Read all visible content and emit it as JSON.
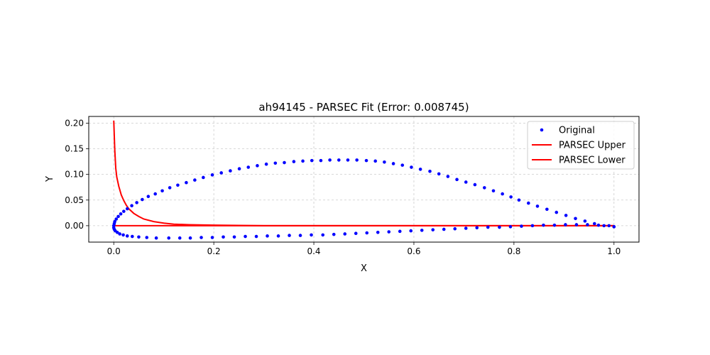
{
  "chart_data": {
    "type": "line",
    "title": "ah94145 - PARSEC Fit (Error: 0.008745)",
    "xlabel": "X",
    "ylabel": "Y",
    "xlim": [
      -0.05,
      1.05
    ],
    "ylim": [
      -0.032,
      0.213
    ],
    "xticks": [
      0.0,
      0.2,
      0.4,
      0.6,
      0.8,
      1.0
    ],
    "xtick_labels": [
      "0.0",
      "0.2",
      "0.4",
      "0.6",
      "0.8",
      "1.0"
    ],
    "yticks": [
      0.0,
      0.05,
      0.1,
      0.15,
      0.2
    ],
    "ytick_labels": [
      "0.00",
      "0.05",
      "0.10",
      "0.15",
      "0.20"
    ],
    "grid": true,
    "legend_position": "upper right",
    "colors": {
      "points": "#0000ff",
      "lines": "#ff0000",
      "grid": "#cccccc"
    },
    "series": [
      {
        "name": "Original",
        "kind": "scatter",
        "x": [
          1.0,
          0.98,
          0.961,
          0.942,
          0.923,
          0.904,
          0.885,
          0.866,
          0.847,
          0.829,
          0.81,
          0.794,
          0.777,
          0.759,
          0.741,
          0.722,
          0.704,
          0.686,
          0.668,
          0.65,
          0.632,
          0.613,
          0.595,
          0.577,
          0.559,
          0.541,
          0.523,
          0.505,
          0.486,
          0.468,
          0.45,
          0.432,
          0.414,
          0.396,
          0.378,
          0.36,
          0.341,
          0.323,
          0.305,
          0.287,
          0.269,
          0.251,
          0.233,
          0.215,
          0.197,
          0.179,
          0.162,
          0.145,
          0.128,
          0.112,
          0.097,
          0.083,
          0.069,
          0.057,
          0.046,
          0.036,
          0.027,
          0.02,
          0.014,
          0.009,
          0.005,
          0.002,
          0.001,
          0.0,
          0.0,
          0.001,
          0.003,
          0.007,
          0.012,
          0.019,
          0.027,
          0.037,
          0.05,
          0.066,
          0.085,
          0.11,
          0.132,
          0.153,
          0.175,
          0.197,
          0.219,
          0.241,
          0.263,
          0.285,
          0.307,
          0.329,
          0.351,
          0.373,
          0.395,
          0.418,
          0.44,
          0.462,
          0.484,
          0.506,
          0.528,
          0.55,
          0.572,
          0.594,
          0.616,
          0.638,
          0.66,
          0.682,
          0.704,
          0.726,
          0.748,
          0.771,
          0.793,
          0.815,
          0.837,
          0.859,
          0.881,
          0.903,
          0.925,
          0.947,
          0.969,
          0.99,
          1.0
        ],
        "y": [
          -0.002,
          0.0,
          0.004,
          0.009,
          0.014,
          0.02,
          0.026,
          0.032,
          0.038,
          0.044,
          0.05,
          0.056,
          0.062,
          0.068,
          0.074,
          0.08,
          0.085,
          0.09,
          0.096,
          0.101,
          0.106,
          0.11,
          0.114,
          0.118,
          0.121,
          0.124,
          0.126,
          0.127,
          0.128,
          0.128,
          0.128,
          0.128,
          0.127,
          0.127,
          0.126,
          0.125,
          0.123,
          0.122,
          0.12,
          0.117,
          0.114,
          0.111,
          0.107,
          0.103,
          0.099,
          0.094,
          0.089,
          0.084,
          0.079,
          0.074,
          0.068,
          0.062,
          0.057,
          0.051,
          0.045,
          0.039,
          0.033,
          0.028,
          0.023,
          0.018,
          0.013,
          0.008,
          0.004,
          0.0,
          -0.004,
          -0.007,
          -0.01,
          -0.013,
          -0.016,
          -0.018,
          -0.02,
          -0.021,
          -0.022,
          -0.023,
          -0.024,
          -0.024,
          -0.024,
          -0.024,
          -0.023,
          -0.023,
          -0.022,
          -0.022,
          -0.021,
          -0.021,
          -0.02,
          -0.02,
          -0.019,
          -0.019,
          -0.018,
          -0.018,
          -0.017,
          -0.016,
          -0.015,
          -0.014,
          -0.013,
          -0.012,
          -0.011,
          -0.01,
          -0.009,
          -0.008,
          -0.007,
          -0.006,
          -0.005,
          -0.004,
          -0.003,
          -0.003,
          -0.002,
          -0.001,
          0.0,
          0.001,
          0.001,
          0.002,
          0.002,
          0.002,
          0.001,
          0.0,
          -0.002
        ]
      },
      {
        "name": "PARSEC Upper",
        "kind": "line",
        "x": [
          0.0,
          0.002,
          0.004,
          0.006,
          0.01,
          0.015,
          0.02,
          0.025,
          0.03,
          0.04,
          0.05,
          0.06,
          0.08,
          0.1,
          0.12,
          0.15,
          0.2,
          0.3,
          0.4,
          0.6,
          0.8,
          1.0
        ],
        "y": [
          0.205,
          0.148,
          0.112,
          0.095,
          0.077,
          0.06,
          0.049,
          0.04,
          0.033,
          0.024,
          0.018,
          0.013,
          0.008,
          0.005,
          0.003,
          0.002,
          0.001,
          0.0,
          0.0,
          0.0,
          0.0,
          0.0
        ]
      },
      {
        "name": "PARSEC Lower",
        "kind": "line",
        "x": [
          0.0,
          0.2,
          0.4,
          0.6,
          0.8,
          1.0
        ],
        "y": [
          0.0,
          0.0,
          0.0,
          0.0,
          0.0,
          0.0
        ]
      }
    ]
  }
}
